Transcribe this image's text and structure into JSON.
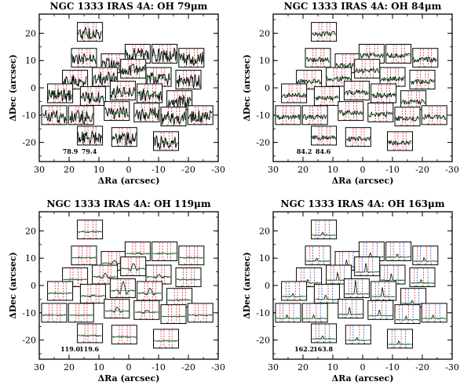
{
  "figure": {
    "xlabel": "ΔRa (arcsec)",
    "ylabel": "ΔDec (arcsec)",
    "xticks": [
      30,
      20,
      10,
      0,
      -10,
      -20,
      -30
    ],
    "yticks": [
      20,
      10,
      0,
      -10,
      -20
    ]
  },
  "chart_data": [
    {
      "type": "spectral-map",
      "title": "NGC 1333 IRAS 4A: OH 79μm",
      "xlabel": "ΔRa (arcsec)",
      "ylabel": "ΔDec (arcsec)",
      "xlim": [
        30,
        -30
      ],
      "ylim": [
        -27,
        27
      ],
      "line_labels": [
        "78.9",
        "79.4"
      ],
      "profile": "noisy",
      "spaxels": [
        {
          "ra": 13,
          "dec": 20.5
        },
        {
          "ra": 15,
          "dec": 11
        },
        {
          "ra": 5,
          "dec": 9
        },
        {
          "ra": -3,
          "dec": 12.5
        },
        {
          "ra": -12,
          "dec": 12.5
        },
        {
          "ra": -21,
          "dec": 11
        },
        {
          "ra": 18,
          "dec": 3
        },
        {
          "ra": 8,
          "dec": 4
        },
        {
          "ra": -1.5,
          "dec": 7
        },
        {
          "ra": -10,
          "dec": 4
        },
        {
          "ra": -20,
          "dec": 3
        },
        {
          "ra": 23,
          "dec": -2
        },
        {
          "ra": 12,
          "dec": -3
        },
        {
          "ra": 2,
          "dec": -1
        },
        {
          "ra": -7,
          "dec": -2
        },
        {
          "ra": -17,
          "dec": -4.5
        },
        {
          "ra": 25,
          "dec": -10
        },
        {
          "ra": 16,
          "dec": -10
        },
        {
          "ra": 4,
          "dec": -8.5
        },
        {
          "ra": -6,
          "dec": -9
        },
        {
          "ra": -15,
          "dec": -10.5
        },
        {
          "ra": -24,
          "dec": -10
        },
        {
          "ra": 13,
          "dec": -17.5
        },
        {
          "ra": 1.5,
          "dec": -18
        },
        {
          "ra": -12.5,
          "dec": -19.5
        }
      ]
    },
    {
      "type": "spectral-map",
      "title": "NGC 1333 IRAS 4A: OH 84μm",
      "xlabel": "ΔRa (arcsec)",
      "ylabel": "ΔDec (arcsec)",
      "xlim": [
        30,
        -30
      ],
      "ylim": [
        -27,
        27
      ],
      "line_labels": [
        "84.2",
        "84.6"
      ],
      "profile": "mid",
      "spaxels": [
        {
          "ra": 13,
          "dec": 20.5
        },
        {
          "ra": 15,
          "dec": 11
        },
        {
          "ra": 5,
          "dec": 9
        },
        {
          "ra": -3,
          "dec": 12.5
        },
        {
          "ra": -12,
          "dec": 12.5
        },
        {
          "ra": -21,
          "dec": 11
        },
        {
          "ra": 18,
          "dec": 3
        },
        {
          "ra": 8,
          "dec": 4
        },
        {
          "ra": -1.5,
          "dec": 7
        },
        {
          "ra": -10,
          "dec": 4
        },
        {
          "ra": -20,
          "dec": 3
        },
        {
          "ra": 23,
          "dec": -2
        },
        {
          "ra": 12,
          "dec": -3
        },
        {
          "ra": 2,
          "dec": -1
        },
        {
          "ra": -7,
          "dec": -2
        },
        {
          "ra": -17,
          "dec": -4.5
        },
        {
          "ra": 25,
          "dec": -10
        },
        {
          "ra": 16,
          "dec": -10
        },
        {
          "ra": 4,
          "dec": -8.5
        },
        {
          "ra": -6,
          "dec": -9
        },
        {
          "ra": -15,
          "dec": -10.5
        },
        {
          "ra": -24,
          "dec": -10
        },
        {
          "ra": 13,
          "dec": -17.5
        },
        {
          "ra": 1.5,
          "dec": -18
        },
        {
          "ra": -12.5,
          "dec": -19.5
        }
      ]
    },
    {
      "type": "spectral-map",
      "title": "NGC 1333 IRAS 4A: OH 119μm",
      "xlabel": "ΔRa (arcsec)",
      "ylabel": "ΔDec (arcsec)",
      "xlim": [
        30,
        -30
      ],
      "ylim": [
        -27,
        27
      ],
      "line_labels": [
        "119.0",
        "119.6"
      ],
      "profile": "absorption",
      "spaxels": [
        {
          "ra": 13,
          "dec": 20.5
        },
        {
          "ra": 15,
          "dec": 11
        },
        {
          "ra": 5,
          "dec": 9
        },
        {
          "ra": -3,
          "dec": 12.5
        },
        {
          "ra": -12,
          "dec": 12.5
        },
        {
          "ra": -21,
          "dec": 11
        },
        {
          "ra": 18,
          "dec": 3
        },
        {
          "ra": 8,
          "dec": 4
        },
        {
          "ra": -1.5,
          "dec": 7
        },
        {
          "ra": -10,
          "dec": 4
        },
        {
          "ra": -20,
          "dec": 3
        },
        {
          "ra": 23,
          "dec": -2
        },
        {
          "ra": 12,
          "dec": -3
        },
        {
          "ra": 2,
          "dec": -1
        },
        {
          "ra": -7,
          "dec": -2
        },
        {
          "ra": -17,
          "dec": -4.5
        },
        {
          "ra": 25,
          "dec": -10
        },
        {
          "ra": 16,
          "dec": -10
        },
        {
          "ra": 4,
          "dec": -8.5
        },
        {
          "ra": -6,
          "dec": -9
        },
        {
          "ra": -15,
          "dec": -10.5
        },
        {
          "ra": -24,
          "dec": -10
        },
        {
          "ra": 13,
          "dec": -17.5
        },
        {
          "ra": 1.5,
          "dec": -18
        },
        {
          "ra": -12.5,
          "dec": -19.5
        }
      ]
    },
    {
      "type": "spectral-map",
      "title": "NGC 1333 IRAS 4A: OH 163μm",
      "xlabel": "ΔRa (arcsec)",
      "ylabel": "ΔDec (arcsec)",
      "xlim": [
        30,
        -30
      ],
      "ylim": [
        -27,
        27
      ],
      "line_labels": [
        "162.2",
        "163.8"
      ],
      "profile": "emission",
      "spaxels": [
        {
          "ra": 13,
          "dec": 20.5
        },
        {
          "ra": 15,
          "dec": 11
        },
        {
          "ra": 5,
          "dec": 9
        },
        {
          "ra": -3,
          "dec": 12.5
        },
        {
          "ra": -12,
          "dec": 12.5
        },
        {
          "ra": -21,
          "dec": 11
        },
        {
          "ra": 18,
          "dec": 3
        },
        {
          "ra": 8,
          "dec": 4
        },
        {
          "ra": -1.5,
          "dec": 7
        },
        {
          "ra": -10,
          "dec": 4
        },
        {
          "ra": -20,
          "dec": 3
        },
        {
          "ra": 23,
          "dec": -2
        },
        {
          "ra": 12,
          "dec": -3
        },
        {
          "ra": 2,
          "dec": -1
        },
        {
          "ra": -7,
          "dec": -2
        },
        {
          "ra": -17,
          "dec": -4.5
        },
        {
          "ra": 25,
          "dec": -10
        },
        {
          "ra": 16,
          "dec": -10
        },
        {
          "ra": 4,
          "dec": -8.5
        },
        {
          "ra": -6,
          "dec": -9
        },
        {
          "ra": -15,
          "dec": -10.5
        },
        {
          "ra": -24,
          "dec": -10
        },
        {
          "ra": 13,
          "dec": -17.5
        },
        {
          "ra": 1.5,
          "dec": -18
        },
        {
          "ra": -12.5,
          "dec": -19.5
        }
      ]
    }
  ],
  "colors": {
    "red_marker": "#e0303a",
    "blue_marker": "#3a4fd8",
    "green_fit": "#1f9a3a",
    "spectrum": "#000000",
    "frame": "#000000"
  }
}
